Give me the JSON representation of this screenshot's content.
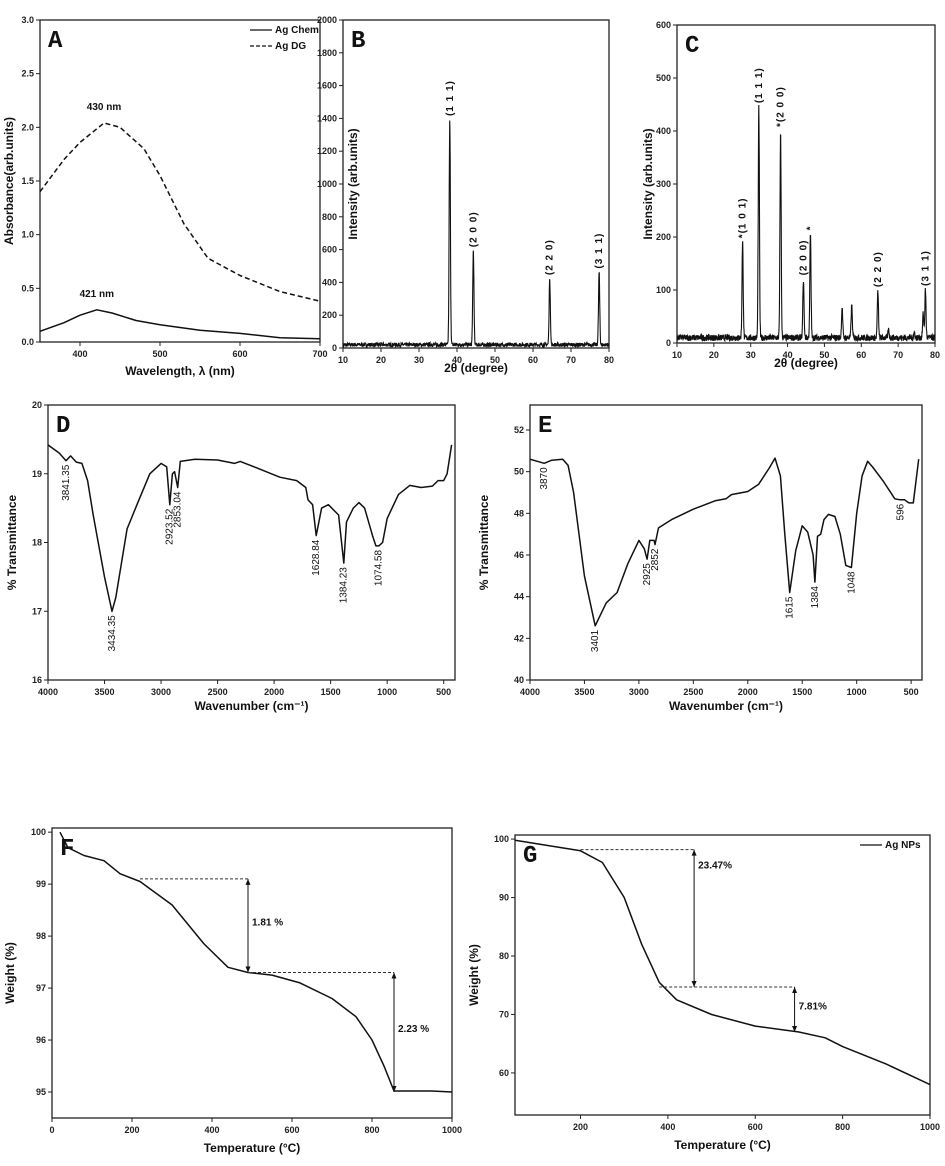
{
  "chart_data": [
    {
      "panel": "A",
      "type": "line",
      "xlabel": "Wavelength, λ (nm)",
      "ylabel": "Absorbance(arb.units)",
      "xlim": [
        350,
        700
      ],
      "ylim": [
        0,
        3
      ],
      "xticks": [
        "400",
        "500",
        "600",
        "700"
      ],
      "yticks": [
        "0.0",
        "0.5",
        "1.0",
        "1.5",
        "2.0",
        "2.5",
        "3.0"
      ],
      "legend": {
        "position": "top-right"
      },
      "series": [
        {
          "name": "Ag Chem",
          "style": "solid",
          "points": [
            [
              350,
              0.1
            ],
            [
              380,
              0.18
            ],
            [
              400,
              0.25
            ],
            [
              421,
              0.3
            ],
            [
              440,
              0.27
            ],
            [
              470,
              0.2
            ],
            [
              500,
              0.16
            ],
            [
              550,
              0.11
            ],
            [
              600,
              0.08
            ],
            [
              650,
              0.04
            ],
            [
              700,
              0.03
            ]
          ]
        },
        {
          "name": "Ag DG",
          "style": "dashed",
          "points": [
            [
              350,
              1.4
            ],
            [
              380,
              1.7
            ],
            [
              400,
              1.86
            ],
            [
              430,
              2.04
            ],
            [
              450,
              2.0
            ],
            [
              480,
              1.8
            ],
            [
              500,
              1.55
            ],
            [
              530,
              1.1
            ],
            [
              560,
              0.78
            ],
            [
              600,
              0.62
            ],
            [
              650,
              0.47
            ],
            [
              700,
              0.38
            ]
          ]
        }
      ],
      "annotations": [
        {
          "text": "430 nm",
          "x": 430,
          "y": 2.16
        },
        {
          "text": "421 nm",
          "x": 421,
          "y": 0.42
        }
      ]
    },
    {
      "panel": "B",
      "type": "line",
      "xlabel": "2θ (degree)",
      "ylabel": "Intensity (arb.units)",
      "xlim": [
        10,
        80
      ],
      "ylim": [
        0,
        2000
      ],
      "xticks": [
        "10",
        "20",
        "30",
        "40",
        "50",
        "60",
        "70",
        "80"
      ],
      "yticks": [
        "0",
        "200",
        "400",
        "600",
        "800",
        "1000",
        "1200",
        "1400",
        "1600",
        "1800",
        "2000"
      ],
      "baseline": 20,
      "peaks": [
        {
          "x": 38.1,
          "y": 1390,
          "label": "(1 1 1)"
        },
        {
          "x": 44.3,
          "y": 590,
          "label": "(2 0 0)"
        },
        {
          "x": 64.4,
          "y": 420,
          "label": "(2 2 0)"
        },
        {
          "x": 77.4,
          "y": 460,
          "label": "(3 1 1)"
        }
      ]
    },
    {
      "panel": "C",
      "type": "line",
      "xlabel": "2θ (degree)",
      "ylabel": "Intensity (arb.units)",
      "xlim": [
        10,
        80
      ],
      "ylim": [
        0,
        600
      ],
      "xticks": [
        "10",
        "20",
        "30",
        "40",
        "50",
        "60",
        "70",
        "80"
      ],
      "yticks": [
        "0",
        "100",
        "200",
        "300",
        "400",
        "500",
        "600"
      ],
      "baseline": 10,
      "peaks": [
        {
          "x": 27.8,
          "y": 190,
          "label": "*(1 0 1)"
        },
        {
          "x": 32.2,
          "y": 445,
          "label": "(1 1 1)"
        },
        {
          "x": 38.1,
          "y": 400,
          "label": "*(2 0 0)"
        },
        {
          "x": 44.3,
          "y": 120,
          "label": "(2 0 0)"
        },
        {
          "x": 46.2,
          "y": 205,
          "label": "*"
        },
        {
          "x": 54.8,
          "y": 68,
          "label": ""
        },
        {
          "x": 57.4,
          "y": 72,
          "label": ""
        },
        {
          "x": 64.5,
          "y": 98,
          "label": "(2 2 0)"
        },
        {
          "x": 67.4,
          "y": 25,
          "label": ""
        },
        {
          "x": 74.4,
          "y": 20,
          "label": ""
        },
        {
          "x": 76.8,
          "y": 55,
          "label": ""
        },
        {
          "x": 77.4,
          "y": 100,
          "label": "(3 1 1)"
        }
      ]
    },
    {
      "panel": "D",
      "type": "line",
      "xlabel": "Wavenumber (cm⁻¹)",
      "ylabel": "% Transmittance",
      "xlim": [
        4000,
        400
      ],
      "ylim": [
        16,
        20
      ],
      "xticks": [
        "4000",
        "3500",
        "3000",
        "2500",
        "2000",
        "1500",
        "1000",
        "500"
      ],
      "yticks": [
        "16",
        "17",
        "18",
        "19",
        "20"
      ],
      "series": [
        {
          "style": "solid",
          "points": [
            [
              4000,
              19.42
            ],
            [
              3900,
              19.3
            ],
            [
              3841,
              19.19
            ],
            [
              3800,
              19.26
            ],
            [
              3750,
              19.17
            ],
            [
              3700,
              19.15
            ],
            [
              3650,
              18.9
            ],
            [
              3600,
              18.4
            ],
            [
              3500,
              17.5
            ],
            [
              3434,
              17.0
            ],
            [
              3400,
              17.2
            ],
            [
              3300,
              18.2
            ],
            [
              3200,
              18.6
            ],
            [
              3100,
              19.0
            ],
            [
              3000,
              19.15
            ],
            [
              2950,
              19.1
            ],
            [
              2923,
              18.55
            ],
            [
              2900,
              19.0
            ],
            [
              2880,
              19.03
            ],
            [
              2853,
              18.8
            ],
            [
              2830,
              19.18
            ],
            [
              2700,
              19.21
            ],
            [
              2500,
              19.2
            ],
            [
              2350,
              19.15
            ],
            [
              2300,
              19.18
            ],
            [
              2100,
              19.05
            ],
            [
              1950,
              18.95
            ],
            [
              1800,
              18.9
            ],
            [
              1720,
              18.8
            ],
            [
              1700,
              18.62
            ],
            [
              1660,
              18.55
            ],
            [
              1628,
              18.1
            ],
            [
              1580,
              18.5
            ],
            [
              1520,
              18.55
            ],
            [
              1430,
              18.4
            ],
            [
              1384,
              17.7
            ],
            [
              1360,
              18.3
            ],
            [
              1300,
              18.5
            ],
            [
              1250,
              18.58
            ],
            [
              1200,
              18.5
            ],
            [
              1130,
              18.1
            ],
            [
              1100,
              17.95
            ],
            [
              1074,
              17.95
            ],
            [
              1040,
              18.0
            ],
            [
              1000,
              18.35
            ],
            [
              900,
              18.7
            ],
            [
              800,
              18.83
            ],
            [
              700,
              18.8
            ],
            [
              600,
              18.82
            ],
            [
              550,
              18.9
            ],
            [
              500,
              18.9
            ],
            [
              470,
              19.0
            ],
            [
              430,
              19.42
            ]
          ]
        }
      ],
      "peak_labels": [
        {
          "x": 3841.35,
          "y": 19.19,
          "label": "3841.35"
        },
        {
          "x": 3434.35,
          "y": 17.0,
          "label": "3434.35"
        },
        {
          "x": 2923.52,
          "y": 18.55,
          "label": "2923.52"
        },
        {
          "x": 2853.04,
          "y": 18.8,
          "label": "2853.04"
        },
        {
          "x": 1628.84,
          "y": 18.1,
          "label": "1628.84"
        },
        {
          "x": 1384.23,
          "y": 17.7,
          "label": "1384.23"
        },
        {
          "x": 1074.58,
          "y": 17.95,
          "label": "1074.58"
        }
      ]
    },
    {
      "panel": "E",
      "type": "line",
      "xlabel": "Wavenumber (cm⁻¹)",
      "ylabel": "% Transmittance",
      "xlim": [
        4000,
        400
      ],
      "ylim": [
        40,
        53.2
      ],
      "xticks": [
        "4000",
        "3500",
        "3000",
        "2500",
        "2000",
        "1500",
        "1000",
        "500"
      ],
      "yticks": [
        "40",
        "42",
        "44",
        "46",
        "48",
        "50",
        "52"
      ],
      "series": [
        {
          "style": "solid",
          "points": [
            [
              4000,
              50.6
            ],
            [
              3870,
              50.4
            ],
            [
              3800,
              50.55
            ],
            [
              3700,
              50.6
            ],
            [
              3650,
              50.3
            ],
            [
              3600,
              49
            ],
            [
              3500,
              45
            ],
            [
              3401,
              42.6
            ],
            [
              3300,
              43.7
            ],
            [
              3200,
              44.2
            ],
            [
              3100,
              45.6
            ],
            [
              3000,
              46.7
            ],
            [
              2950,
              46.3
            ],
            [
              2925,
              45.8
            ],
            [
              2900,
              46.7
            ],
            [
              2860,
              46.7
            ],
            [
              2852,
              46.5
            ],
            [
              2820,
              47.3
            ],
            [
              2700,
              47.7
            ],
            [
              2500,
              48.2
            ],
            [
              2300,
              48.6
            ],
            [
              2200,
              48.7
            ],
            [
              2150,
              48.9
            ],
            [
              2000,
              49.05
            ],
            [
              1900,
              49.4
            ],
            [
              1800,
              50.2
            ],
            [
              1750,
              50.65
            ],
            [
              1700,
              49.8
            ],
            [
              1660,
              47
            ],
            [
              1615,
              44.2
            ],
            [
              1560,
              46.2
            ],
            [
              1500,
              47.4
            ],
            [
              1450,
              47.1
            ],
            [
              1400,
              46
            ],
            [
              1384,
              44.7
            ],
            [
              1360,
              46.9
            ],
            [
              1330,
              47
            ],
            [
              1300,
              47.7
            ],
            [
              1260,
              47.95
            ],
            [
              1200,
              47.85
            ],
            [
              1150,
              47
            ],
            [
              1100,
              45.5
            ],
            [
              1048,
              45.4
            ],
            [
              1000,
              48
            ],
            [
              950,
              49.8
            ],
            [
              900,
              50.5
            ],
            [
              850,
              50.2
            ],
            [
              750,
              49.5
            ],
            [
              650,
              48.7
            ],
            [
              600,
              48.65
            ],
            [
              560,
              48.65
            ],
            [
              520,
              48.5
            ],
            [
              480,
              48.5
            ],
            [
              430,
              50.6
            ]
          ]
        }
      ],
      "peak_labels": [
        {
          "x": 3870,
          "y": 50.4,
          "label": "3870"
        },
        {
          "x": 3401,
          "y": 42.6,
          "label": "3401"
        },
        {
          "x": 2925,
          "y": 45.8,
          "label": "2925"
        },
        {
          "x": 2852,
          "y": 46.5,
          "label": "2852"
        },
        {
          "x": 1615,
          "y": 44.2,
          "label": "1615"
        },
        {
          "x": 1384,
          "y": 44.7,
          "label": "1384"
        },
        {
          "x": 1048,
          "y": 45.4,
          "label": "1048"
        },
        {
          "x": 596,
          "y": 48.65,
          "label": "596"
        }
      ]
    },
    {
      "panel": "F",
      "type": "line",
      "xlabel": "Temperature (°C)",
      "ylabel": "Weight (%)",
      "xlim": [
        0,
        1000
      ],
      "ylim": [
        94.5,
        100.08
      ],
      "xticks": [
        "0",
        "200",
        "400",
        "600",
        "800",
        "1000"
      ],
      "yticks": [
        "95",
        "96",
        "97",
        "98",
        "99",
        "100"
      ],
      "series": [
        {
          "style": "solid",
          "points": [
            [
              20,
              100
            ],
            [
              40,
              99.7
            ],
            [
              80,
              99.55
            ],
            [
              130,
              99.45
            ],
            [
              170,
              99.2
            ],
            [
              220,
              99.05
            ],
            [
              300,
              98.6
            ],
            [
              380,
              97.85
            ],
            [
              440,
              97.4
            ],
            [
              490,
              97.3
            ],
            [
              550,
              97.25
            ],
            [
              620,
              97.1
            ],
            [
              700,
              96.8
            ],
            [
              760,
              96.45
            ],
            [
              800,
              96.0
            ],
            [
              830,
              95.5
            ],
            [
              855,
              95.02
            ],
            [
              900,
              95.02
            ],
            [
              950,
              95.02
            ],
            [
              1000,
              95.0
            ]
          ]
        }
      ],
      "steps": [
        {
          "text": "1.81 %",
          "x_start": 220,
          "x_arrow": 490,
          "upper": 99.1,
          "lower": 97.3
        },
        {
          "text": "2.23 %",
          "x_start": 490,
          "x_arrow": 855,
          "upper": 97.3,
          "lower": 95.0
        }
      ]
    },
    {
      "panel": "G",
      "type": "line",
      "xlabel": "Temperature (°C)",
      "ylabel": "Weight (%)",
      "xlim": [
        50,
        1000
      ],
      "ylim": [
        52.8,
        100.7
      ],
      "xticks": [
        "200",
        "400",
        "600",
        "800",
        "1000"
      ],
      "yticks": [
        "60",
        "70",
        "80",
        "90",
        "100"
      ],
      "legend": {
        "position": "top-right"
      },
      "series": [
        {
          "name": "Ag NPs",
          "style": "solid",
          "points": [
            [
              50,
              99.8
            ],
            [
              100,
              99.2
            ],
            [
              150,
              98.6
            ],
            [
              200,
              98.0
            ],
            [
              250,
              96
            ],
            [
              300,
              90
            ],
            [
              340,
              82
            ],
            [
              380,
              75.5
            ],
            [
              420,
              72.5
            ],
            [
              500,
              70
            ],
            [
              600,
              68
            ],
            [
              700,
              67
            ],
            [
              760,
              66
            ],
            [
              800,
              64.5
            ],
            [
              900,
              61.5
            ],
            [
              1000,
              58
            ]
          ]
        }
      ],
      "steps": [
        {
          "text": "23.47%",
          "x_start": 200,
          "x_arrow": 460,
          "upper": 98.2,
          "lower": 74.7
        },
        {
          "text": "7.81%",
          "x_start": 380,
          "x_arrow": 690,
          "upper": 74.7,
          "lower": 67.0
        }
      ]
    }
  ]
}
